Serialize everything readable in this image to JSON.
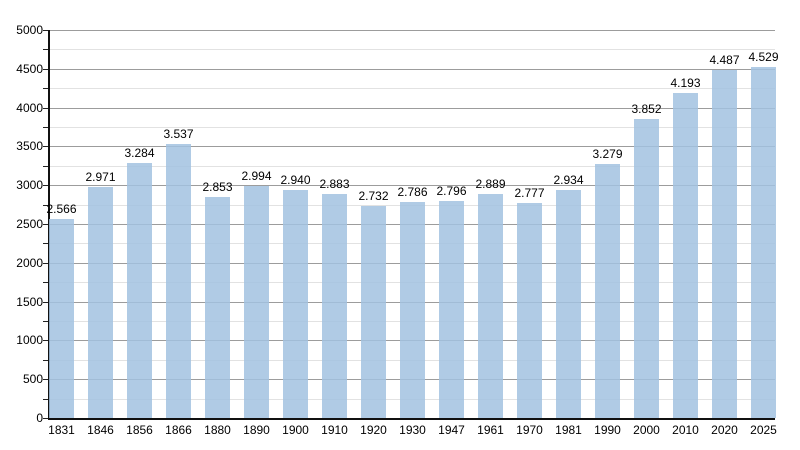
{
  "chart_data": {
    "type": "bar",
    "title": "",
    "xlabel": "",
    "ylabel": "",
    "categories": [
      "1831",
      "1846",
      "1856",
      "1866",
      "1880",
      "1890",
      "1900",
      "1910",
      "1920",
      "1930",
      "1947",
      "1961",
      "1970",
      "1981",
      "1990",
      "2000",
      "2010",
      "2020",
      "2025"
    ],
    "values": [
      2566,
      2971,
      3284,
      3537,
      2853,
      2994,
      2940,
      2883,
      2732,
      2786,
      2796,
      2889,
      2777,
      2934,
      3279,
      3852,
      4193,
      4487,
      4529
    ],
    "value_labels": [
      "2.566",
      "2.971",
      "3.284",
      "3.537",
      "2.853",
      "2.994",
      "2.940",
      "2.883",
      "2.732",
      "2.786",
      "2.796",
      "2.889",
      "2.777",
      "2.934",
      "3.279",
      "3.852",
      "4.193",
      "4.487",
      "4.529"
    ],
    "ylim": [
      0,
      5000
    ],
    "y_major_step": 500,
    "y_minor_step": 250,
    "y_tick_labels": [
      "0",
      "500",
      "1000",
      "1500",
      "2000",
      "2500",
      "3000",
      "3500",
      "4000",
      "4500",
      "5000"
    ],
    "grid": "horizontal",
    "legend": "none",
    "colors": {
      "bar_fill": "#a2c2e0",
      "bar_fill_rendered": "#b0cbe5",
      "major_grid": "#9c9c9c",
      "minor_grid": "#e2e2e2",
      "axis": "#111111",
      "text": "#000000",
      "background": "#ffffff"
    }
  }
}
